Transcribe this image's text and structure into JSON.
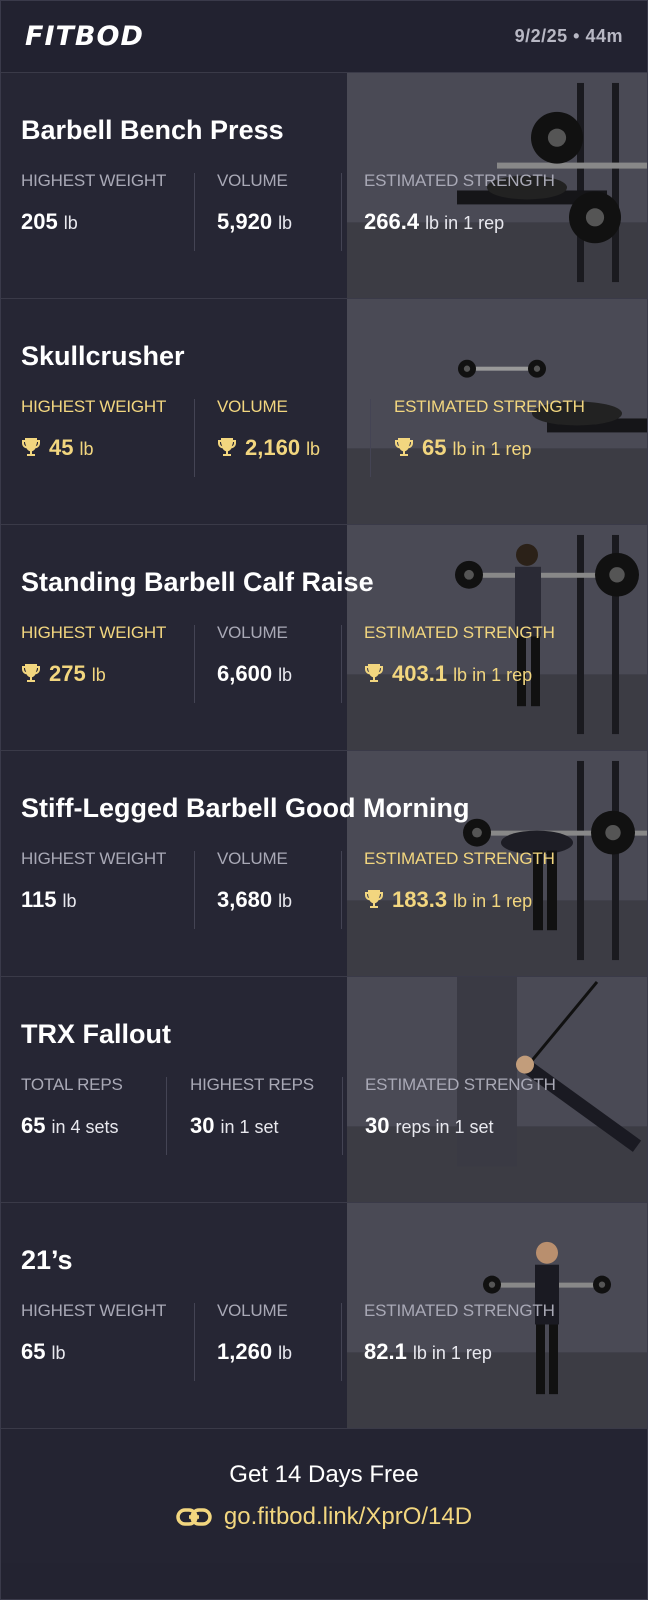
{
  "header": {
    "logo": "FITBOD",
    "date_duration": "9/2/25 • 44m"
  },
  "colors": {
    "background": "#232331",
    "accent_gold": "#f2d67f",
    "label_gray": "#a9a9b6"
  },
  "exercises": [
    {
      "name": "Barbell Bench Press",
      "photo": "bench-press-photo",
      "stats": [
        {
          "label": "HIGHEST WEIGHT",
          "value": "205",
          "unit": "lb",
          "record": false
        },
        {
          "label": "VOLUME",
          "value": "5,920",
          "unit": "lb",
          "record": false
        },
        {
          "label": "ESTIMATED STRENGTH",
          "value": "266.4",
          "unit": "lb in 1 rep",
          "record": false
        }
      ]
    },
    {
      "name": "Skullcrusher",
      "photo": "skullcrusher-photo",
      "stats": [
        {
          "label": "HIGHEST WEIGHT",
          "value": "45",
          "unit": "lb",
          "record": true
        },
        {
          "label": "VOLUME",
          "value": "2,160",
          "unit": "lb",
          "record": true
        },
        {
          "label": "ESTIMATED STRENGTH",
          "value": "65",
          "unit": "lb in 1 rep",
          "record": true
        }
      ]
    },
    {
      "name": "Standing Barbell Calf Raise",
      "photo": "calf-raise-photo",
      "stats": [
        {
          "label": "HIGHEST WEIGHT",
          "value": "275",
          "unit": "lb",
          "record": true
        },
        {
          "label": "VOLUME",
          "value": "6,600",
          "unit": "lb",
          "record": false
        },
        {
          "label": "ESTIMATED STRENGTH",
          "value": "403.1",
          "unit": "lb in 1 rep",
          "record": true
        }
      ]
    },
    {
      "name": "Stiff-Legged Barbell Good Morning",
      "photo": "good-morning-photo",
      "stats": [
        {
          "label": "HIGHEST WEIGHT",
          "value": "115",
          "unit": "lb",
          "record": false
        },
        {
          "label": "VOLUME",
          "value": "3,680",
          "unit": "lb",
          "record": false
        },
        {
          "label": "ESTIMATED STRENGTH",
          "value": "183.3",
          "unit": "lb in 1 rep",
          "record": true
        }
      ]
    },
    {
      "name": "TRX Fallout",
      "photo": "trx-fallout-photo",
      "stats": [
        {
          "label": "TOTAL REPS",
          "value": "65",
          "unit": "in 4 sets",
          "record": false
        },
        {
          "label": "HIGHEST REPS",
          "value": "30",
          "unit": "in 1 set",
          "record": false
        },
        {
          "label": "ESTIMATED STRENGTH",
          "value": "30",
          "unit": "reps in 1 set",
          "record": false
        }
      ]
    },
    {
      "name": "21’s",
      "photo": "twenty-ones-photo",
      "stats": [
        {
          "label": "HIGHEST WEIGHT",
          "value": "65",
          "unit": "lb",
          "record": false
        },
        {
          "label": "VOLUME",
          "value": "1,260",
          "unit": "lb",
          "record": false
        },
        {
          "label": "ESTIMATED STRENGTH",
          "value": "82.1",
          "unit": "lb in 1 rep",
          "record": false
        }
      ]
    }
  ],
  "footer": {
    "cta": "Get 14 Days Free",
    "link_icon": "link-icon",
    "link": "go.fitbod.link/XprO/14D"
  }
}
